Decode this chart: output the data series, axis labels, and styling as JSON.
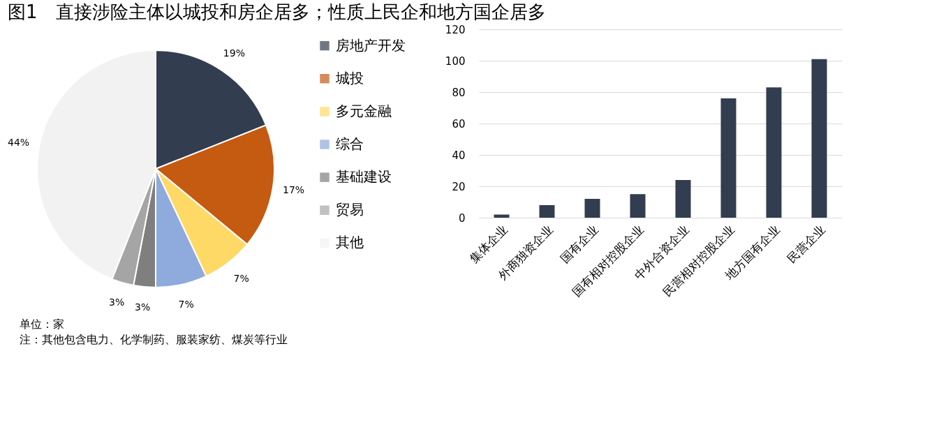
{
  "chart_data": [
    {
      "type": "pie",
      "title": "图1　直接涉险主体以城投和房企居多；性质上民企和地方国企居多",
      "categories": [
        "房地产开发",
        "城投",
        "多元金融",
        "综合",
        "基础建设",
        "贸易",
        "其他"
      ],
      "values": [
        19,
        17,
        7,
        7,
        3,
        3,
        44
      ],
      "value_labels": [
        "19%",
        "17%",
        "7%",
        "7%",
        "3%",
        "3%",
        "44%"
      ],
      "colors": [
        "#333d50",
        "#c55a11",
        "#ffd966",
        "#8faadc",
        "#7f7f7f",
        "#a5a5a5",
        "#f2f2f2"
      ],
      "legend": "right",
      "annotations": [
        "单位：家",
        "注：其他包含电力、化学制药、服装家纺、煤炭等行业"
      ]
    },
    {
      "type": "bar",
      "categories": [
        "集体企业",
        "外商独资企业",
        "国有企业",
        "国有相对控股企业",
        "中外合资企业",
        "民营相对控股企业",
        "地方国有企业",
        "民营企业"
      ],
      "series": [
        {
          "color": "#333d50",
          "values": [
            2,
            8,
            12,
            15,
            24,
            76,
            83,
            101
          ]
        }
      ],
      "ylim": [
        0,
        120
      ],
      "yticks": [
        0,
        20,
        40,
        60,
        80,
        100,
        120
      ],
      "grid": "y"
    }
  ]
}
